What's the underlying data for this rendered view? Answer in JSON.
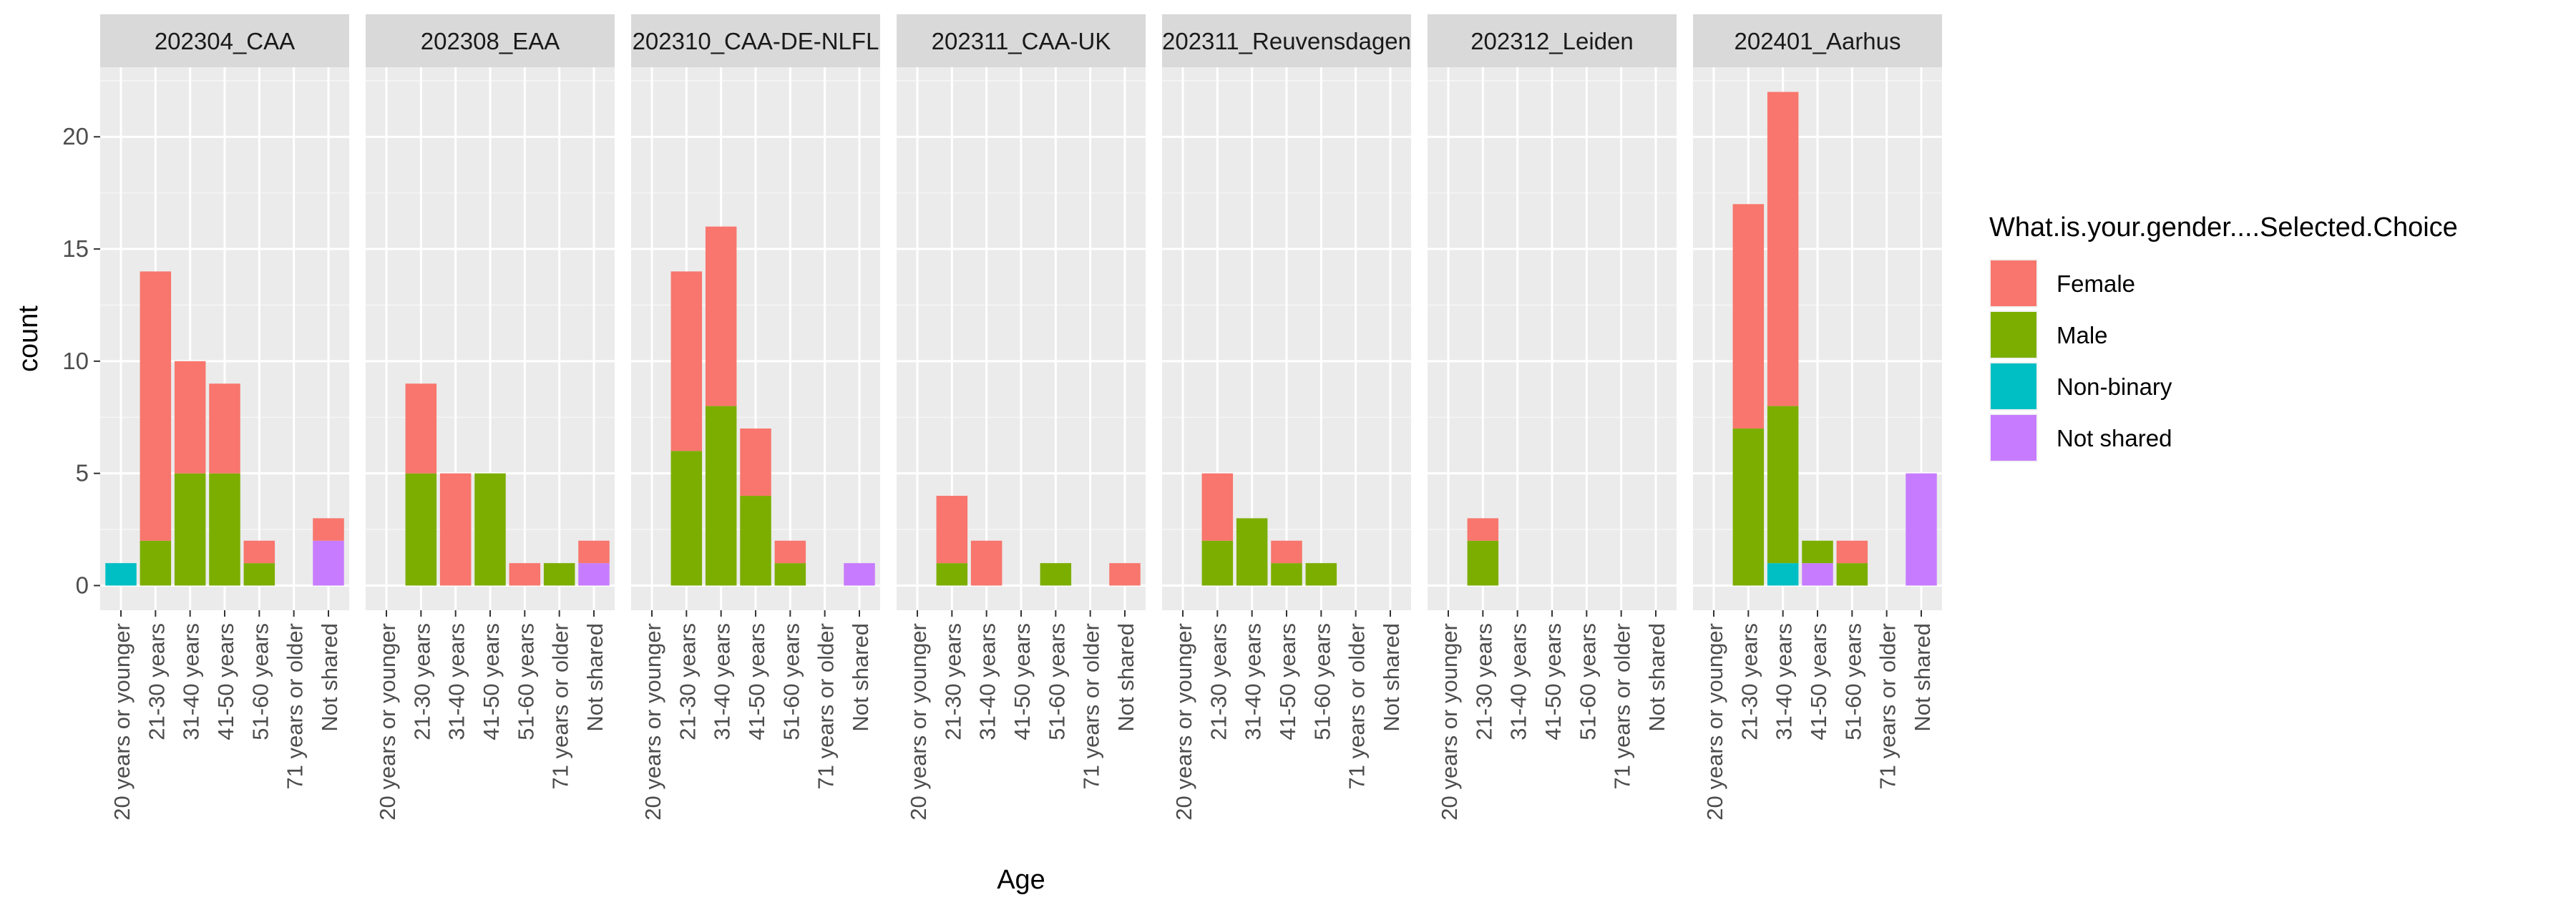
{
  "chart_data": {
    "type": "bar",
    "stacked": true,
    "faceted": true,
    "xlabel": "Age",
    "ylabel": "count",
    "ylim": [
      -1.1,
      23.1
    ],
    "y_ticks": [
      0,
      5,
      10,
      15,
      20
    ],
    "grid": true,
    "legend": {
      "title": "What.is.your.gender....Selected.Choice",
      "position": "right"
    },
    "categories": [
      "20 years or younger",
      "21-30 years",
      "31-40 years",
      "41-50 years",
      "51-60 years",
      "71 years or older",
      "Not shared"
    ],
    "series_colors": {
      "Female": "#F8766D",
      "Male": "#7CAE00",
      "Non-binary": "#00BFC4",
      "Not shared": "#C77CFF"
    },
    "series_names": [
      "Female",
      "Male",
      "Non-binary",
      "Not shared"
    ],
    "stack_order_bottom_to_top": [
      "Not shared",
      "Non-binary",
      "Male",
      "Female"
    ],
    "panels": [
      {
        "title": "202304_CAA",
        "series": [
          {
            "name": "Female",
            "values": [
              0,
              12,
              5,
              4,
              1,
              0,
              1
            ]
          },
          {
            "name": "Male",
            "values": [
              0,
              2,
              5,
              5,
              1,
              0,
              0
            ]
          },
          {
            "name": "Non-binary",
            "values": [
              1,
              0,
              0,
              0,
              0,
              0,
              0
            ]
          },
          {
            "name": "Not shared",
            "values": [
              0,
              0,
              0,
              0,
              0,
              0,
              2
            ]
          }
        ]
      },
      {
        "title": "202308_EAA",
        "series": [
          {
            "name": "Female",
            "values": [
              0,
              4,
              5,
              0,
              1,
              0,
              1
            ]
          },
          {
            "name": "Male",
            "values": [
              0,
              5,
              0,
              5,
              0,
              1,
              0
            ]
          },
          {
            "name": "Non-binary",
            "values": [
              0,
              0,
              0,
              0,
              0,
              0,
              0
            ]
          },
          {
            "name": "Not shared",
            "values": [
              0,
              0,
              0,
              0,
              0,
              0,
              1
            ]
          }
        ]
      },
      {
        "title": "202310_CAA-DE-NLFL",
        "series": [
          {
            "name": "Female",
            "values": [
              0,
              8,
              8,
              3,
              1,
              0,
              0
            ]
          },
          {
            "name": "Male",
            "values": [
              0,
              6,
              8,
              4,
              1,
              0,
              0
            ]
          },
          {
            "name": "Non-binary",
            "values": [
              0,
              0,
              0,
              0,
              0,
              0,
              0
            ]
          },
          {
            "name": "Not shared",
            "values": [
              0,
              0,
              0,
              0,
              0,
              0,
              1
            ]
          }
        ]
      },
      {
        "title": "202311_CAA-UK",
        "series": [
          {
            "name": "Female",
            "values": [
              0,
              3,
              2,
              0,
              0,
              0,
              1
            ]
          },
          {
            "name": "Male",
            "values": [
              0,
              1,
              0,
              0,
              1,
              0,
              0
            ]
          },
          {
            "name": "Non-binary",
            "values": [
              0,
              0,
              0,
              0,
              0,
              0,
              0
            ]
          },
          {
            "name": "Not shared",
            "values": [
              0,
              0,
              0,
              0,
              0,
              0,
              0
            ]
          }
        ]
      },
      {
        "title": "202311_Reuvensdagen",
        "series": [
          {
            "name": "Female",
            "values": [
              0,
              3,
              0,
              1,
              0,
              0,
              0
            ]
          },
          {
            "name": "Male",
            "values": [
              0,
              2,
              3,
              1,
              1,
              0,
              0
            ]
          },
          {
            "name": "Non-binary",
            "values": [
              0,
              0,
              0,
              0,
              0,
              0,
              0
            ]
          },
          {
            "name": "Not shared",
            "values": [
              0,
              0,
              0,
              0,
              0,
              0,
              0
            ]
          }
        ]
      },
      {
        "title": "202312_Leiden",
        "series": [
          {
            "name": "Female",
            "values": [
              0,
              1,
              0,
              0,
              0,
              0,
              0
            ]
          },
          {
            "name": "Male",
            "values": [
              0,
              2,
              0,
              0,
              0,
              0,
              0
            ]
          },
          {
            "name": "Non-binary",
            "values": [
              0,
              0,
              0,
              0,
              0,
              0,
              0
            ]
          },
          {
            "name": "Not shared",
            "values": [
              0,
              0,
              0,
              0,
              0,
              0,
              0
            ]
          }
        ]
      },
      {
        "title": "202401_Aarhus",
        "series": [
          {
            "name": "Female",
            "values": [
              0,
              10,
              14,
              0,
              1,
              0,
              0
            ]
          },
          {
            "name": "Male",
            "values": [
              0,
              7,
              7,
              1,
              1,
              0,
              0
            ]
          },
          {
            "name": "Non-binary",
            "values": [
              0,
              0,
              1,
              0,
              0,
              0,
              0
            ]
          },
          {
            "name": "Not shared",
            "values": [
              0,
              0,
              0,
              1,
              0,
              0,
              5
            ]
          }
        ]
      }
    ]
  }
}
